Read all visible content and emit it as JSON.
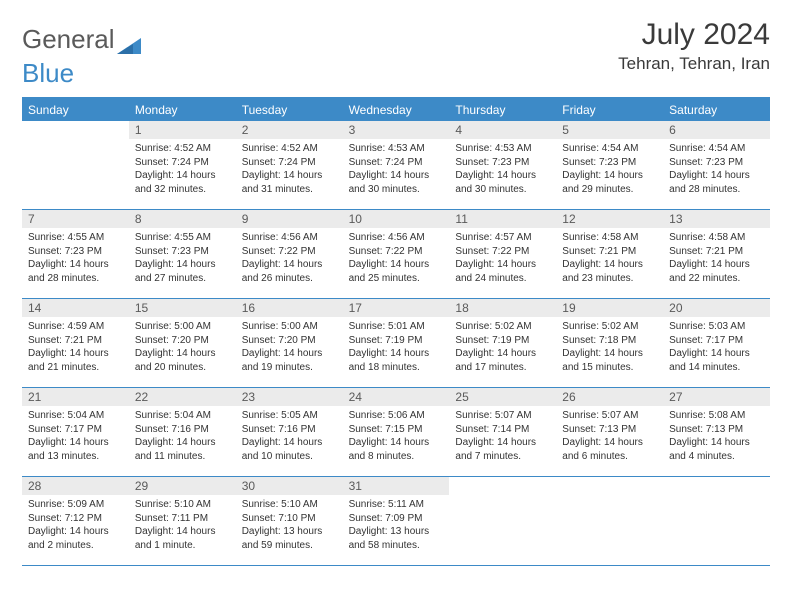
{
  "logo": {
    "text1": "General",
    "text2": "Blue",
    "color1": "#6a6a6a",
    "color2": "#3d8ac7"
  },
  "title": "July 2024",
  "location": "Tehran, Tehran, Iran",
  "colors": {
    "header_bg": "#3d8ac7",
    "header_text": "#ffffff",
    "daynum_bg": "#ebebeb",
    "daynum_text": "#5a5a5a",
    "body_text": "#333333",
    "rule": "#3d8ac7"
  },
  "fonts": {
    "title_pt": 30,
    "location_pt": 17,
    "dow_pt": 12,
    "daynum_pt": 12,
    "body_pt": 10
  },
  "days_of_week": [
    "Sunday",
    "Monday",
    "Tuesday",
    "Wednesday",
    "Thursday",
    "Friday",
    "Saturday"
  ],
  "weeks": [
    [
      null,
      {
        "n": "1",
        "sr": "4:52 AM",
        "ss": "7:24 PM",
        "dl": "14 hours and 32 minutes."
      },
      {
        "n": "2",
        "sr": "4:52 AM",
        "ss": "7:24 PM",
        "dl": "14 hours and 31 minutes."
      },
      {
        "n": "3",
        "sr": "4:53 AM",
        "ss": "7:24 PM",
        "dl": "14 hours and 30 minutes."
      },
      {
        "n": "4",
        "sr": "4:53 AM",
        "ss": "7:23 PM",
        "dl": "14 hours and 30 minutes."
      },
      {
        "n": "5",
        "sr": "4:54 AM",
        "ss": "7:23 PM",
        "dl": "14 hours and 29 minutes."
      },
      {
        "n": "6",
        "sr": "4:54 AM",
        "ss": "7:23 PM",
        "dl": "14 hours and 28 minutes."
      }
    ],
    [
      {
        "n": "7",
        "sr": "4:55 AM",
        "ss": "7:23 PM",
        "dl": "14 hours and 28 minutes."
      },
      {
        "n": "8",
        "sr": "4:55 AM",
        "ss": "7:23 PM",
        "dl": "14 hours and 27 minutes."
      },
      {
        "n": "9",
        "sr": "4:56 AM",
        "ss": "7:22 PM",
        "dl": "14 hours and 26 minutes."
      },
      {
        "n": "10",
        "sr": "4:56 AM",
        "ss": "7:22 PM",
        "dl": "14 hours and 25 minutes."
      },
      {
        "n": "11",
        "sr": "4:57 AM",
        "ss": "7:22 PM",
        "dl": "14 hours and 24 minutes."
      },
      {
        "n": "12",
        "sr": "4:58 AM",
        "ss": "7:21 PM",
        "dl": "14 hours and 23 minutes."
      },
      {
        "n": "13",
        "sr": "4:58 AM",
        "ss": "7:21 PM",
        "dl": "14 hours and 22 minutes."
      }
    ],
    [
      {
        "n": "14",
        "sr": "4:59 AM",
        "ss": "7:21 PM",
        "dl": "14 hours and 21 minutes."
      },
      {
        "n": "15",
        "sr": "5:00 AM",
        "ss": "7:20 PM",
        "dl": "14 hours and 20 minutes."
      },
      {
        "n": "16",
        "sr": "5:00 AM",
        "ss": "7:20 PM",
        "dl": "14 hours and 19 minutes."
      },
      {
        "n": "17",
        "sr": "5:01 AM",
        "ss": "7:19 PM",
        "dl": "14 hours and 18 minutes."
      },
      {
        "n": "18",
        "sr": "5:02 AM",
        "ss": "7:19 PM",
        "dl": "14 hours and 17 minutes."
      },
      {
        "n": "19",
        "sr": "5:02 AM",
        "ss": "7:18 PM",
        "dl": "14 hours and 15 minutes."
      },
      {
        "n": "20",
        "sr": "5:03 AM",
        "ss": "7:17 PM",
        "dl": "14 hours and 14 minutes."
      }
    ],
    [
      {
        "n": "21",
        "sr": "5:04 AM",
        "ss": "7:17 PM",
        "dl": "14 hours and 13 minutes."
      },
      {
        "n": "22",
        "sr": "5:04 AM",
        "ss": "7:16 PM",
        "dl": "14 hours and 11 minutes."
      },
      {
        "n": "23",
        "sr": "5:05 AM",
        "ss": "7:16 PM",
        "dl": "14 hours and 10 minutes."
      },
      {
        "n": "24",
        "sr": "5:06 AM",
        "ss": "7:15 PM",
        "dl": "14 hours and 8 minutes."
      },
      {
        "n": "25",
        "sr": "5:07 AM",
        "ss": "7:14 PM",
        "dl": "14 hours and 7 minutes."
      },
      {
        "n": "26",
        "sr": "5:07 AM",
        "ss": "7:13 PM",
        "dl": "14 hours and 6 minutes."
      },
      {
        "n": "27",
        "sr": "5:08 AM",
        "ss": "7:13 PM",
        "dl": "14 hours and 4 minutes."
      }
    ],
    [
      {
        "n": "28",
        "sr": "5:09 AM",
        "ss": "7:12 PM",
        "dl": "14 hours and 2 minutes."
      },
      {
        "n": "29",
        "sr": "5:10 AM",
        "ss": "7:11 PM",
        "dl": "14 hours and 1 minute."
      },
      {
        "n": "30",
        "sr": "5:10 AM",
        "ss": "7:10 PM",
        "dl": "13 hours and 59 minutes."
      },
      {
        "n": "31",
        "sr": "5:11 AM",
        "ss": "7:09 PM",
        "dl": "13 hours and 58 minutes."
      },
      null,
      null,
      null
    ]
  ],
  "labels": {
    "sunrise": "Sunrise:",
    "sunset": "Sunset:",
    "daylight": "Daylight:"
  }
}
